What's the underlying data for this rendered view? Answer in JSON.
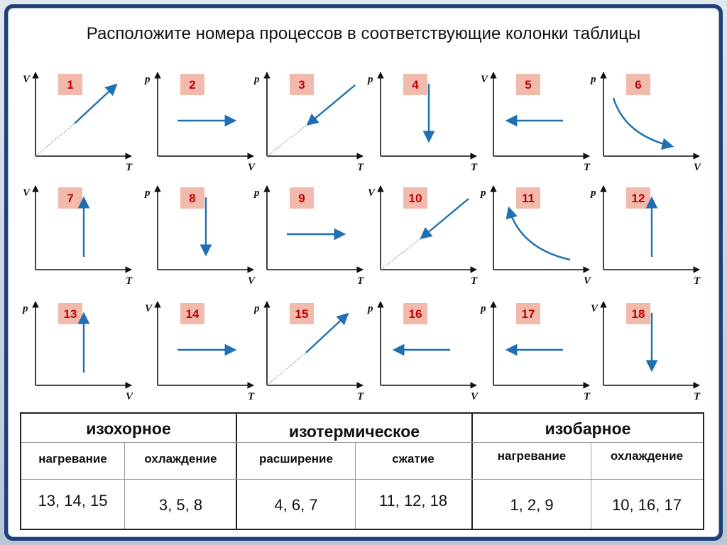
{
  "title": "Расположите  номера процессов в соответствующие колонки таблицы",
  "colors": {
    "arrow": "#1f6fb5",
    "badge_bg": "#f2b9ad",
    "badge_text": "#c00000",
    "axis": "#111111",
    "frame": "#1f3f78"
  },
  "graphs": [
    {
      "num": "1",
      "y_label": "V",
      "x_label": "T",
      "curve": "diag-up"
    },
    {
      "num": "2",
      "y_label": "p",
      "x_label": "V",
      "curve": "horiz-right"
    },
    {
      "num": "3",
      "y_label": "p",
      "x_label": "T",
      "curve": "diag-down"
    },
    {
      "num": "4",
      "y_label": "p",
      "x_label": "T",
      "curve": "vert-down"
    },
    {
      "num": "5",
      "y_label": "V",
      "x_label": "T",
      "curve": "horiz-left"
    },
    {
      "num": "6",
      "y_label": "p",
      "x_label": "V",
      "curve": "hyper-down"
    },
    {
      "num": "7",
      "y_label": "V",
      "x_label": "T",
      "curve": "vert-up"
    },
    {
      "num": "8",
      "y_label": "p",
      "x_label": "V",
      "curve": "vert-down"
    },
    {
      "num": "9",
      "y_label": "p",
      "x_label": "T",
      "curve": "horiz-right"
    },
    {
      "num": "10",
      "y_label": "V",
      "x_label": "T",
      "curve": "diag-down"
    },
    {
      "num": "11",
      "y_label": "p",
      "x_label": "V",
      "curve": "hyper-up"
    },
    {
      "num": "12",
      "y_label": "p",
      "x_label": "T",
      "curve": "vert-up"
    },
    {
      "num": "13",
      "y_label": "p",
      "x_label": "V",
      "curve": "vert-up"
    },
    {
      "num": "14",
      "y_label": "V",
      "x_label": "T",
      "curve": "horiz-right"
    },
    {
      "num": "15",
      "y_label": "p",
      "x_label": "T",
      "curve": "diag-up"
    },
    {
      "num": "16",
      "y_label": "p",
      "x_label": "V",
      "curve": "horiz-left"
    },
    {
      "num": "17",
      "y_label": "p",
      "x_label": "T",
      "curve": "horiz-left"
    },
    {
      "num": "18",
      "y_label": "V",
      "x_label": "T",
      "curve": "vert-down"
    }
  ],
  "table": {
    "groups": [
      {
        "name": "изохорное",
        "subs": [
          {
            "label": "нагревание",
            "answer": "13, 14, 15"
          },
          {
            "label": "охлаждение",
            "answer": "3,  5,  8"
          }
        ]
      },
      {
        "name": "изотермическое",
        "subs": [
          {
            "label": "расширение",
            "answer": "4,  6,  7"
          },
          {
            "label": "сжатие",
            "answer": "11, 12, 18"
          }
        ]
      },
      {
        "name": "изобарное",
        "subs": [
          {
            "label": "нагревание",
            "answer": "1,  2,  9"
          },
          {
            "label": "охлаждение",
            "answer": "10, 16, 17"
          }
        ]
      }
    ]
  }
}
